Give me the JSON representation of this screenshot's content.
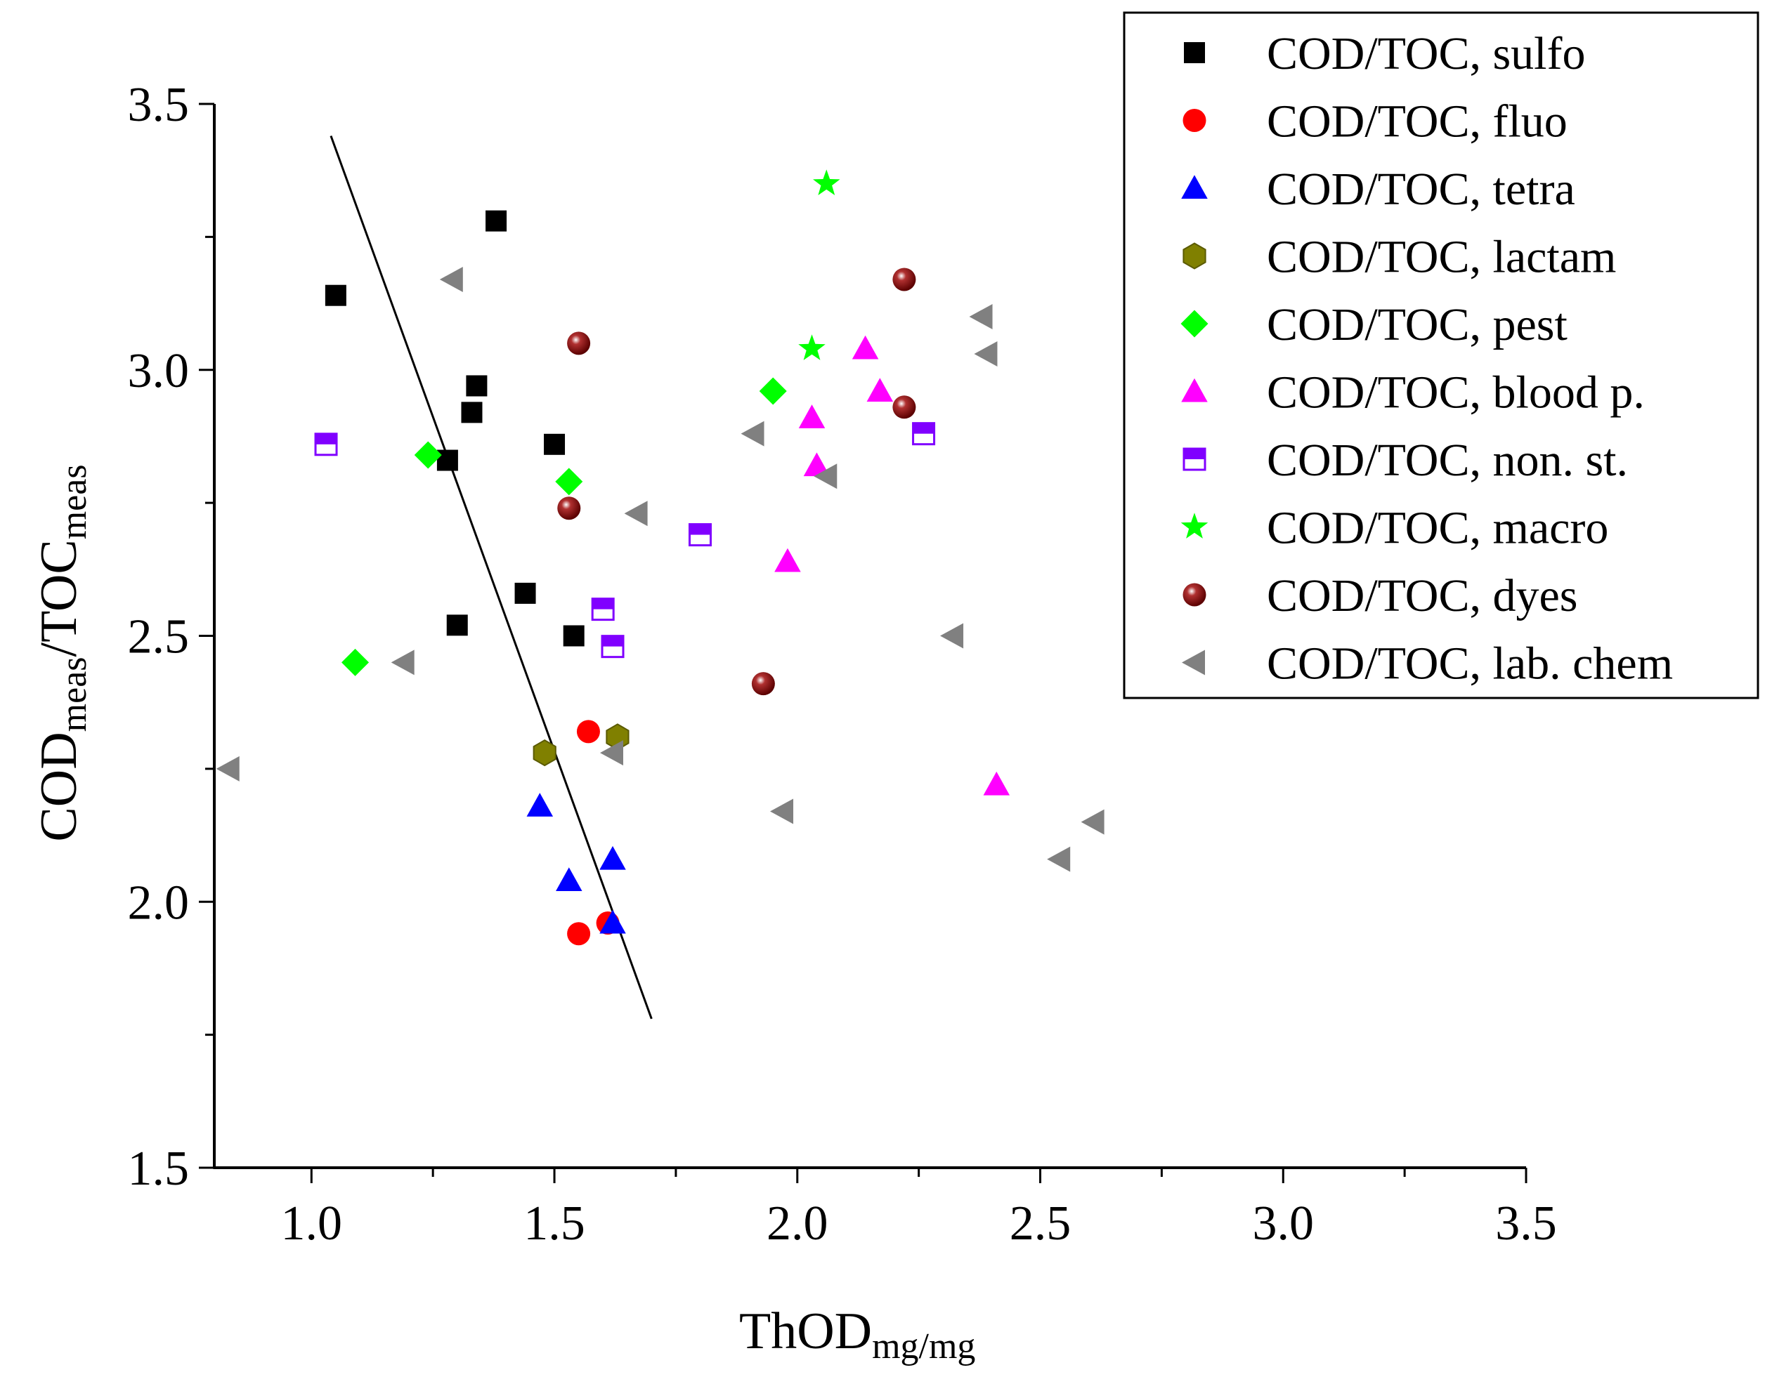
{
  "chart_data": {
    "type": "scatter",
    "title": "",
    "xlabel": {
      "main": "ThOD",
      "sub": "mg/mg"
    },
    "ylabel": {
      "part1": "COD",
      "sub1": "meas",
      "sep": "/TOC",
      "sub2": "meas"
    },
    "xlim": [
      0.8,
      3.5
    ],
    "ylim": [
      1.5,
      3.5
    ],
    "x_ticks": [
      "1.0",
      "1.5",
      "2.0",
      "2.5",
      "3.0",
      "3.5"
    ],
    "y_ticks": [
      "1.5",
      "2.0",
      "2.5",
      "3.0",
      "3.5"
    ],
    "legend_position": "top-right",
    "series": [
      {
        "name": "COD/TOC, sulfo",
        "marker": "square",
        "color": "#000000",
        "points": [
          [
            1.05,
            3.14
          ],
          [
            1.38,
            3.28
          ],
          [
            1.34,
            2.97
          ],
          [
            1.33,
            2.92
          ],
          [
            1.28,
            2.83
          ],
          [
            1.5,
            2.86
          ],
          [
            1.44,
            2.58
          ],
          [
            1.3,
            2.52
          ],
          [
            1.54,
            2.5
          ]
        ]
      },
      {
        "name": "COD/TOC, fluo",
        "marker": "circle",
        "color": "#ff0000",
        "points": [
          [
            1.57,
            2.32
          ],
          [
            1.55,
            1.94
          ],
          [
            1.61,
            1.96
          ]
        ]
      },
      {
        "name": "COD/TOC, tetra",
        "marker": "triangle-up",
        "color": "#0000ff",
        "points": [
          [
            1.47,
            2.18
          ],
          [
            1.53,
            2.04
          ],
          [
            1.62,
            2.08
          ],
          [
            1.62,
            1.96
          ]
        ]
      },
      {
        "name": "COD/TOC, lactam",
        "marker": "hexagon",
        "color": "#808000",
        "points": [
          [
            1.48,
            2.28
          ],
          [
            1.63,
            2.31
          ]
        ]
      },
      {
        "name": "COD/TOC, pest",
        "marker": "diamond",
        "color": "#00ff00",
        "points": [
          [
            1.24,
            2.84
          ],
          [
            1.53,
            2.79
          ],
          [
            1.95,
            2.96
          ],
          [
            1.09,
            2.45
          ]
        ]
      },
      {
        "name": "COD/TOC, blood p.",
        "marker": "triangle-up",
        "color": "#ff00ff",
        "points": [
          [
            2.14,
            3.04
          ],
          [
            2.17,
            2.96
          ],
          [
            2.03,
            2.91
          ],
          [
            2.04,
            2.82
          ],
          [
            1.98,
            2.64
          ],
          [
            2.41,
            2.22
          ]
        ]
      },
      {
        "name": "COD/TOC, non. st.",
        "marker": "half-square",
        "color": "#8000ff",
        "points": [
          [
            1.03,
            2.86
          ],
          [
            1.8,
            2.69
          ],
          [
            1.6,
            2.55
          ],
          [
            1.62,
            2.48
          ],
          [
            2.26,
            2.88
          ]
        ]
      },
      {
        "name": "COD/TOC, macro",
        "marker": "star",
        "color": "#00ff00",
        "points": [
          [
            2.06,
            3.35
          ],
          [
            2.03,
            3.04
          ]
        ]
      },
      {
        "name": "COD/TOC, dyes",
        "marker": "sphere",
        "color": "#8b0000",
        "points": [
          [
            1.55,
            3.05
          ],
          [
            1.53,
            2.74
          ],
          [
            2.22,
            3.17
          ],
          [
            2.22,
            2.93
          ],
          [
            1.93,
            2.41
          ]
        ]
      },
      {
        "name": "COD/TOC, lab. chem",
        "marker": "triangle-left",
        "color": "#808080",
        "points": [
          [
            1.29,
            3.17
          ],
          [
            2.38,
            3.1
          ],
          [
            2.39,
            3.03
          ],
          [
            1.91,
            2.88
          ],
          [
            2.06,
            2.8
          ],
          [
            1.67,
            2.73
          ],
          [
            2.32,
            2.5
          ],
          [
            1.19,
            2.45
          ],
          [
            0.83,
            2.25
          ],
          [
            1.62,
            2.28
          ],
          [
            1.97,
            2.17
          ],
          [
            2.61,
            2.15
          ],
          [
            2.54,
            2.08
          ]
        ]
      }
    ],
    "fit_line": {
      "points": [
        [
          1.04,
          3.44
        ],
        [
          1.7,
          1.78
        ]
      ],
      "color": "#000000"
    }
  }
}
